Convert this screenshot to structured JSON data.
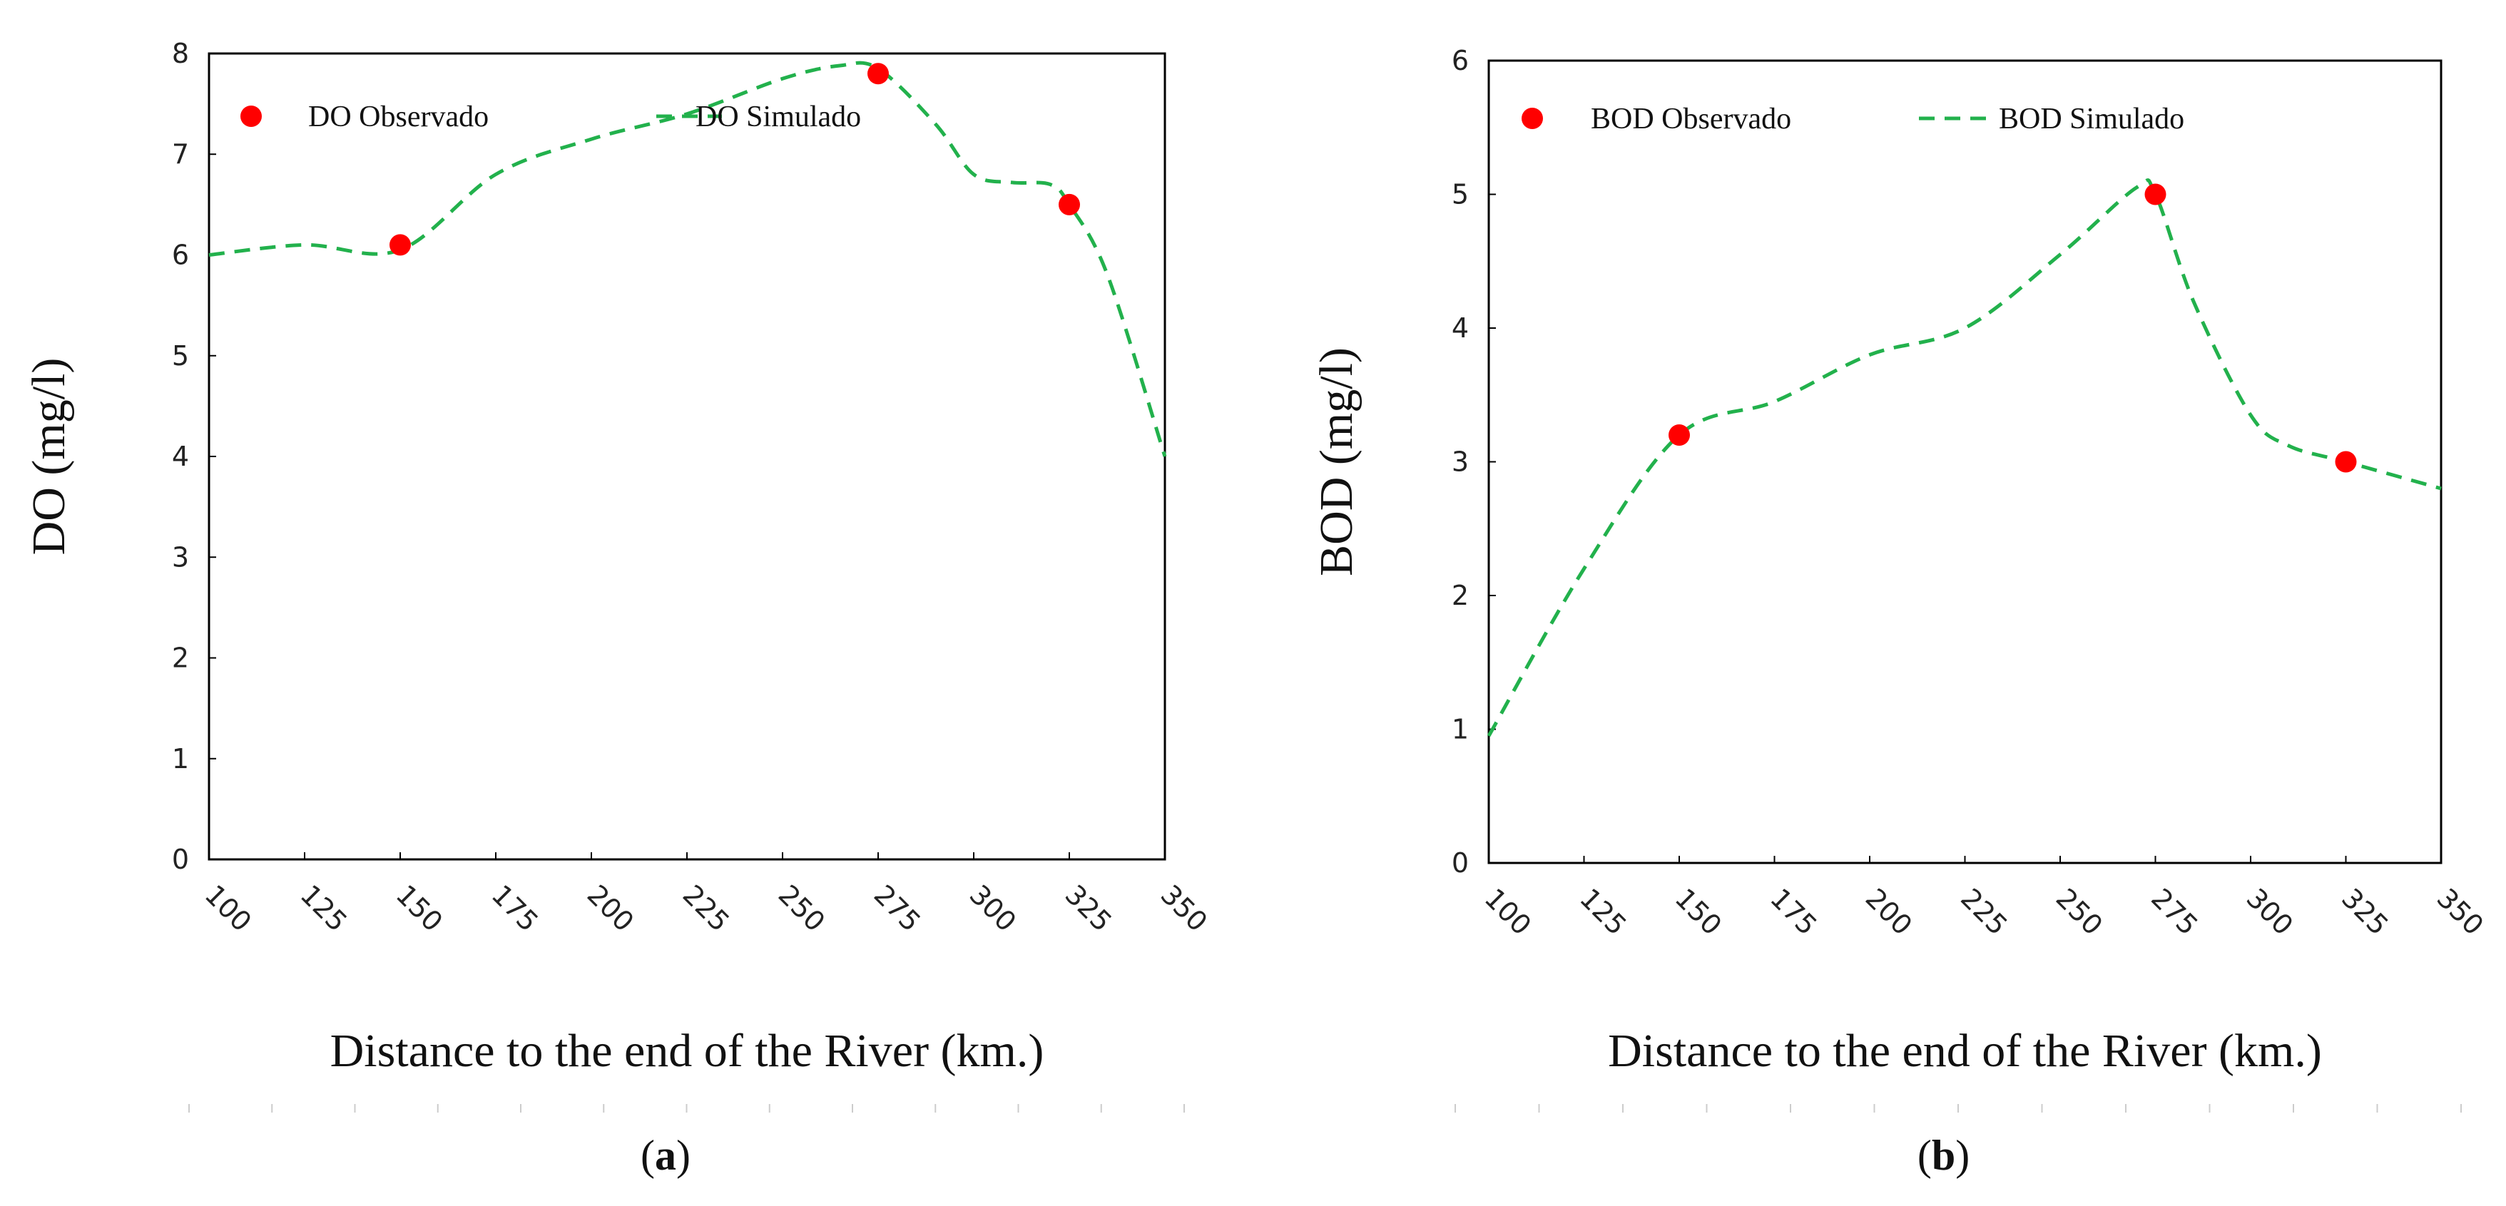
{
  "chart_data": [
    {
      "type": "line",
      "panel_label": "a",
      "xlabel": "Distance to the end of the River (km.)",
      "ylabel": "DO (mg/l)",
      "xlim": [
        100,
        350
      ],
      "ylim": [
        0,
        8
      ],
      "xticks": [
        100,
        125,
        150,
        175,
        200,
        225,
        250,
        275,
        300,
        325,
        350
      ],
      "yticks": [
        0,
        1,
        2,
        3,
        4,
        5,
        6,
        7,
        8
      ],
      "legend_placement": "top",
      "series": [
        {
          "name": "DO Observado",
          "kind": "scatter",
          "color": "#ff0000",
          "x": [
            150,
            275,
            325
          ],
          "y": [
            6.1,
            7.8,
            6.5
          ]
        },
        {
          "name": "DO Simulado",
          "kind": "dashed-line",
          "color": "#22b14c",
          "x": [
            100,
            125,
            150,
            175,
            200,
            225,
            250,
            265,
            275,
            290,
            300,
            310,
            320,
            325,
            335,
            350
          ],
          "y": [
            6.0,
            6.1,
            6.05,
            6.8,
            7.15,
            7.4,
            7.75,
            7.88,
            7.85,
            7.3,
            6.8,
            6.72,
            6.7,
            6.5,
            5.8,
            4.0
          ]
        }
      ]
    },
    {
      "type": "line",
      "panel_label": "b",
      "xlabel": "Distance to the end of the River (km.)",
      "ylabel": "BOD (mg/l)",
      "xlim": [
        100,
        350
      ],
      "ylim": [
        0,
        6
      ],
      "xticks": [
        100,
        125,
        150,
        175,
        200,
        225,
        250,
        275,
        300,
        325,
        350
      ],
      "yticks": [
        0,
        1,
        2,
        3,
        4,
        5,
        6
      ],
      "legend_placement": "top",
      "series": [
        {
          "name": "BOD Observado",
          "kind": "scatter",
          "color": "#ff0000",
          "x": [
            150,
            275,
            325
          ],
          "y": [
            3.2,
            5.0,
            3.0
          ]
        },
        {
          "name": "BOD Simulado",
          "kind": "dashed-line",
          "color": "#22b14c",
          "x": [
            100,
            125,
            150,
            175,
            200,
            225,
            250,
            270,
            275,
            285,
            300,
            310,
            325,
            350
          ],
          "y": [
            0.95,
            2.2,
            3.2,
            3.45,
            3.8,
            4.0,
            4.55,
            5.05,
            5.0,
            4.2,
            3.35,
            3.12,
            3.0,
            2.8
          ]
        }
      ]
    }
  ]
}
